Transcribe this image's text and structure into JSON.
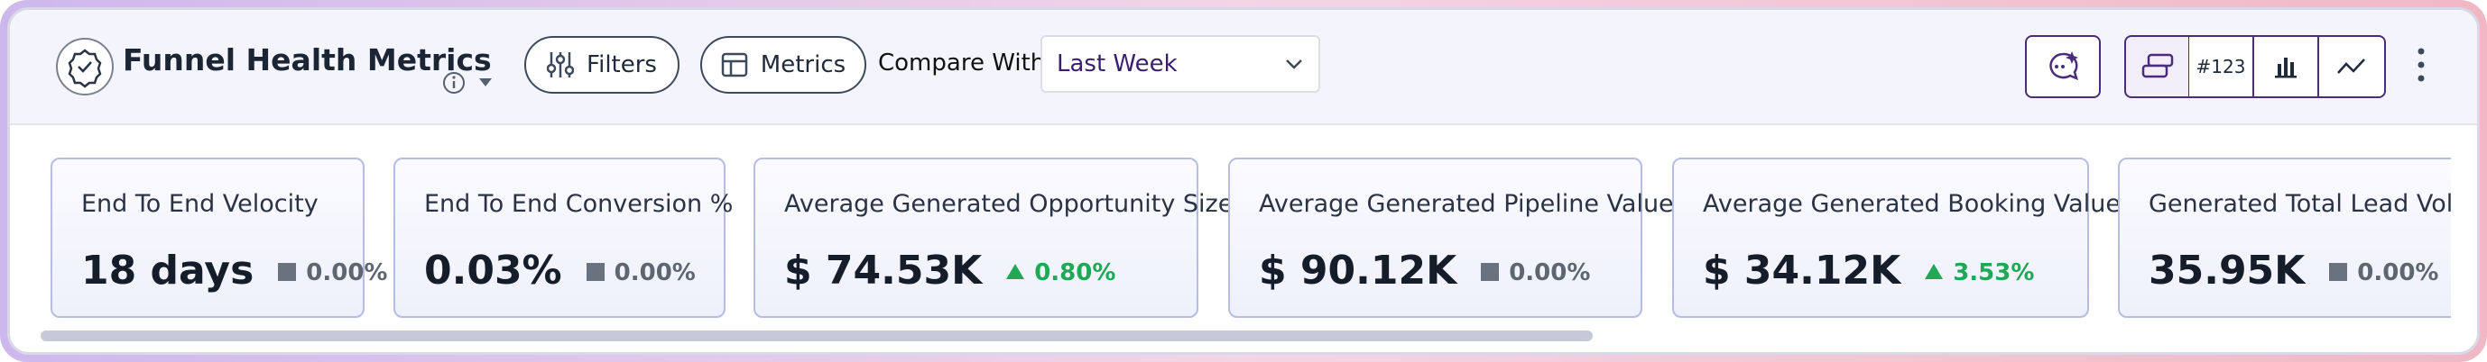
{
  "header": {
    "title": "Funnel Health Metrics",
    "filters_button": "Filters",
    "metrics_button": "Metrics",
    "compare_label": "Compare With:",
    "compare_value": "Last Week",
    "number_toggle": "#123"
  },
  "cards": [
    {
      "label": "End To End Velocity",
      "value": "18 days",
      "change": "0.00%",
      "trend": "flat"
    },
    {
      "label": "End To End Conversion %",
      "value": "0.03%",
      "change": "0.00%",
      "trend": "flat"
    },
    {
      "label": "Average Generated Opportunity Size",
      "value": "$ 74.53K",
      "change": "0.80%",
      "trend": "up"
    },
    {
      "label": "Average Generated Pipeline Value",
      "value": "$ 90.12K",
      "change": "0.00%",
      "trend": "flat"
    },
    {
      "label": "Average Generated Booking Value",
      "value": "$ 34.12K",
      "change": "3.53%",
      "trend": "up"
    },
    {
      "label": "Generated Total Lead Volume",
      "value": "35.95K",
      "change": "0.00%",
      "trend": "flat"
    }
  ]
}
